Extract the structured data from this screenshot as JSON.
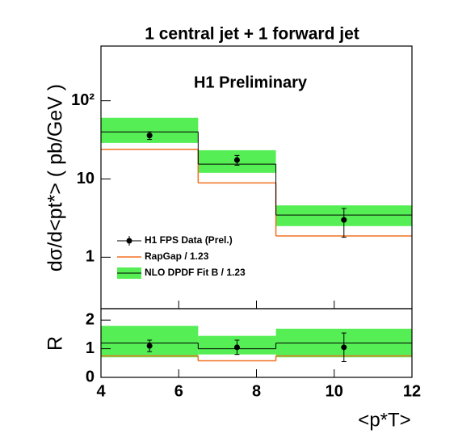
{
  "chart_data": [
    {
      "type": "histogram",
      "title": "1 central jet + 1 forward jet",
      "annotation": "H1 Preliminary",
      "ylabel": "dσ/d<pt*> ( pb/GeV )",
      "bins": [
        4,
        6.5,
        8.5,
        12
      ],
      "x": [
        5.25,
        7.5,
        10.25
      ],
      "xlim": [
        4,
        12
      ],
      "log_y": true,
      "ylim": [
        0.22,
        500
      ],
      "yticks": [
        1,
        10,
        {
          "value": 100,
          "label": "10²"
        }
      ],
      "legend": "lower left",
      "series": [
        {
          "name": "H1 FPS Data (Prel.)",
          "color": "#000000",
          "values": [
            36,
            17.5,
            3.0
          ],
          "errors": [
            4,
            2.5,
            1.2
          ]
        },
        {
          "name": "RapGap / 1.23",
          "color": "#f07020",
          "values": [
            23.9,
            8.9,
            1.87
          ]
        },
        {
          "name": "NLO DPDF Fit B / 1.23",
          "color": "#55ee55",
          "values": [
            40,
            15.5,
            3.46
          ],
          "low": [
            28.9,
            12.0,
            2.5
          ],
          "high": [
            60.6,
            23.3,
            4.6
          ]
        }
      ]
    },
    {
      "type": "histogram",
      "ylabel": "R",
      "xlabel": "<p*T>",
      "bins": [
        4,
        6.5,
        8.5,
        12
      ],
      "x": [
        5.25,
        7.5,
        10.25
      ],
      "xlim": [
        4,
        12
      ],
      "xticks": [
        4,
        6,
        8,
        10,
        12
      ],
      "ylim": [
        0,
        2.4
      ],
      "yticks": [
        0,
        1,
        2
      ],
      "series": [
        {
          "name": "H1 FPS Data (Prel.)",
          "color": "#000000",
          "values": [
            1.1,
            1.05,
            1.05
          ],
          "errors": [
            0.2,
            0.25,
            0.5
          ]
        },
        {
          "name": "RapGap / 1.23",
          "color": "#f07020",
          "values": [
            0.75,
            0.58,
            0.75
          ]
        },
        {
          "name": "NLO DPDF Fit B / 1.23",
          "color": "#55ee55",
          "values": [
            1.2,
            1.0,
            1.2
          ],
          "low": [
            0.7,
            0.8,
            0.7
          ],
          "high": [
            1.8,
            1.45,
            1.7
          ]
        }
      ]
    }
  ]
}
